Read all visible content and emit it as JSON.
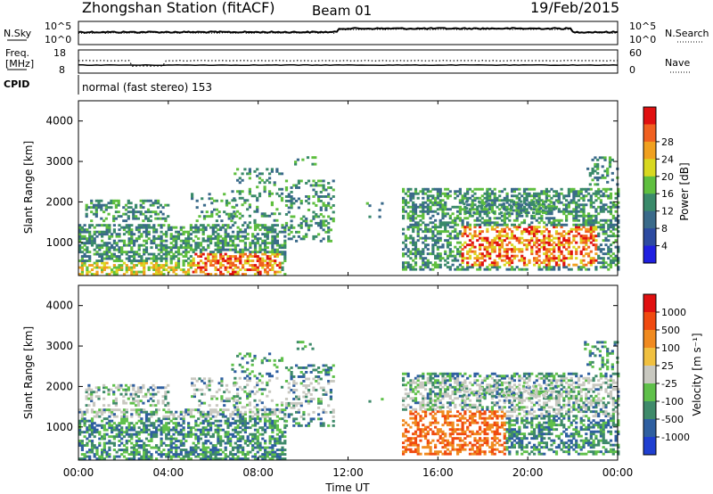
{
  "header": {
    "station": "Zhongshan Station (fitACF)",
    "beam": "Beam 01",
    "date": "19/Feb/2015"
  },
  "noise_panel": {
    "left_label": "N.Sky",
    "right_label": "N.Search",
    "left_ticks": [
      "10^5",
      "10^0"
    ],
    "right_ticks": [
      "10^5",
      "10^0"
    ]
  },
  "freq_panel": {
    "left_label_1": "Freq.",
    "left_label_2": "[MHz]",
    "right_label": "Nave",
    "left_ticks": [
      "18",
      "8"
    ],
    "right_ticks": [
      "60",
      "0"
    ]
  },
  "cpid": {
    "label": "CPID",
    "text": "normal (fast stereo) 153"
  },
  "power_colorbar": {
    "label": "Power [dB]",
    "ticks": [
      "4",
      "8",
      "12",
      "16",
      "20",
      "24",
      "28"
    ],
    "colors": [
      "#1f1fe0",
      "#2d4aa0",
      "#3a6a8a",
      "#3a8a6a",
      "#5fbf3f",
      "#d8d820",
      "#f0a020",
      "#f06020",
      "#e01010"
    ]
  },
  "velocity_colorbar": {
    "label": "Velocity [m s⁻¹]",
    "ticks": [
      "1000",
      "500",
      "100",
      "25",
      "-25",
      "-100",
      "-500",
      "-1000"
    ],
    "colors": [
      "#1f3fd0",
      "#2f5fa0",
      "#3f8a6a",
      "#5fc04a",
      "#c8c8c0",
      "#f0c040",
      "#f08a20",
      "#f04a10",
      "#e01010"
    ]
  },
  "x_axis": {
    "label": "Time UT",
    "ticks": [
      "00:00",
      "04:00",
      "08:00",
      "12:00",
      "16:00",
      "20:00",
      "00:00"
    ]
  },
  "chart_data": [
    {
      "type": "heatmap",
      "panel": "power",
      "ylabel": "Slant Range [km]",
      "xlabel": "",
      "xlim": [
        0,
        24
      ],
      "ylim": [
        180,
        4500
      ],
      "y_ticks": [
        "1000",
        "2000",
        "3000",
        "4000"
      ],
      "series": [
        {
          "x": [
            0.0,
            2.0,
            4.0,
            6.0,
            8.0,
            10.0,
            12.0,
            16.0,
            18.0,
            20.0,
            22.0,
            24.0
          ],
          "values": [
            400,
            400,
            400,
            400,
            400,
            1500,
            0,
            1000,
            1400,
            1400,
            1500,
            1600
          ]
        }
      ]
    },
    {
      "type": "heatmap",
      "panel": "velocity",
      "ylabel": "Slant Range [km]",
      "xlabel": "Time UT",
      "xlim": [
        0,
        24
      ],
      "ylim": [
        180,
        4500
      ],
      "y_ticks": [
        "1000",
        "2000",
        "3000",
        "4000"
      ],
      "series": [
        {
          "x": [
            0.0,
            2.0,
            4.0,
            6.0,
            8.0,
            10.0,
            12.0,
            16.0,
            18.0,
            20.0,
            22.0,
            24.0
          ],
          "values": [
            400,
            400,
            400,
            400,
            400,
            1500,
            0,
            1000,
            1400,
            1400,
            1500,
            1600
          ]
        }
      ]
    }
  ]
}
